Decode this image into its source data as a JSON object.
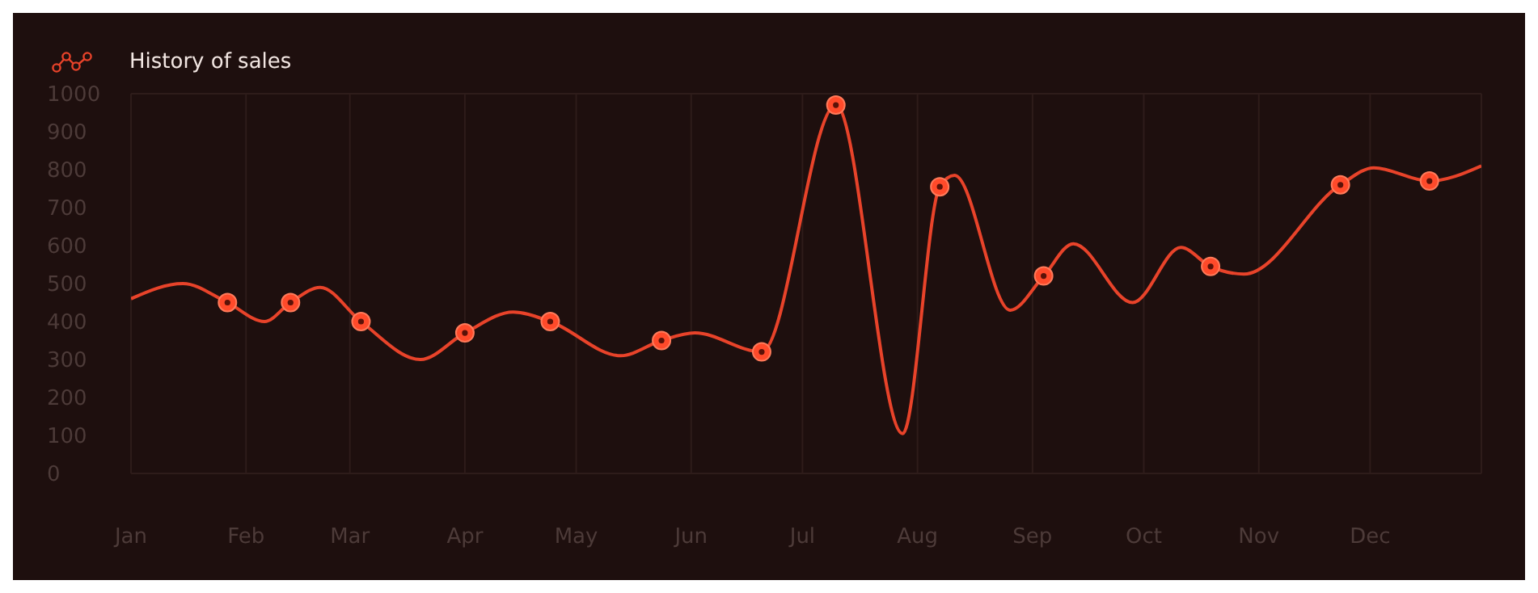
{
  "chart_data": {
    "type": "line",
    "xlim": [
      "--01-01",
      "--12-31"
    ],
    "xticks": [
      {
        "value": "--01-01",
        "label": "Jan"
      },
      {
        "value": "--02-01",
        "label": "Feb"
      },
      {
        "value": "--03-01",
        "label": "Mar"
      },
      {
        "value": "--04-01",
        "label": "Apr"
      },
      {
        "value": "--05-01",
        "label": "May"
      },
      {
        "value": "--06-01",
        "label": "Jun"
      },
      {
        "value": "--07-01",
        "label": "Jul"
      },
      {
        "value": "--08-01",
        "label": "Aug"
      },
      {
        "value": "--09-01",
        "label": "Sep"
      },
      {
        "value": "--10-01",
        "label": "Oct"
      },
      {
        "value": "--11-01",
        "label": "Nov"
      },
      {
        "value": "--12-01",
        "label": "Dec"
      }
    ],
    "ylim": [
      0,
      1000
    ],
    "yticks": [
      0,
      100,
      200,
      300,
      400,
      500,
      600,
      700,
      800,
      900,
      1000
    ],
    "grid": true,
    "legend": "top left",
    "series": [
      {
        "name": "History of sales",
        "marker": "none",
        "color": "#e8432a",
        "x": [
          "--01-01",
          "--01-15",
          "--01-27",
          "--02-06",
          "--02-13",
          "--02-21",
          "--03-04",
          "--03-20",
          "--04-01",
          "--04-14",
          "--04-24",
          "--05-13",
          "--05-24",
          "--06-02",
          "--06-20",
          "--07-10",
          "--07-28",
          "--08-07",
          "--08-11",
          "--08-26",
          "--09-04",
          "--09-12",
          "--09-28",
          "--10-11",
          "--10-19",
          "--10-28",
          "--11-23",
          "--12-02",
          "--12-17",
          "--12-31"
        ],
        "values": [
          460,
          500,
          450,
          400,
          450,
          490,
          400,
          300,
          370,
          425,
          400,
          310,
          350,
          370,
          320,
          970,
          105,
          755,
          785,
          430,
          520,
          605,
          450,
          595,
          545,
          525,
          760,
          805,
          770,
          810
        ]
      },
      {
        "type": "scatter",
        "marker": "circle",
        "color": "#ff4a2a",
        "x": [
          "--01-27",
          "--02-13",
          "--03-04",
          "--04-01",
          "--04-24",
          "--05-24",
          "--06-20",
          "--07-10",
          "--08-07",
          "--09-04",
          "--10-19",
          "--11-23",
          "--12-17"
        ],
        "values": [
          450,
          450,
          400,
          370,
          400,
          350,
          320,
          970,
          755,
          520,
          545,
          760,
          770
        ]
      }
    ]
  }
}
